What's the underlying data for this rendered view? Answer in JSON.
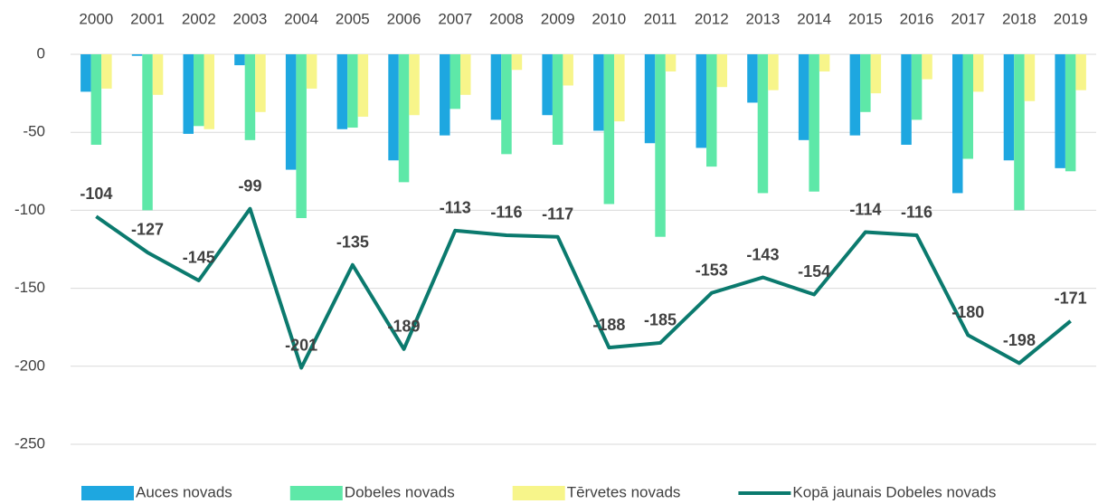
{
  "chart_data": {
    "type": "bar",
    "categories": [
      "2000",
      "2001",
      "2002",
      "2003",
      "2004",
      "2005",
      "2006",
      "2007",
      "2008",
      "2009",
      "2010",
      "2011",
      "2012",
      "2013",
      "2014",
      "2015",
      "2016",
      "2017",
      "2018",
      "2019"
    ],
    "series": [
      {
        "name": "Auces novads",
        "color": "#1ea7e0",
        "type": "bar",
        "values": [
          -24,
          -1,
          -51,
          -7,
          -74,
          -48,
          -68,
          -52,
          -42,
          -39,
          -49,
          -57,
          -60,
          -31,
          -55,
          -52,
          -58,
          -89,
          -68,
          -73
        ]
      },
      {
        "name": "Dobeles novads",
        "color": "#5ee8a8",
        "type": "bar",
        "values": [
          -58,
          -100,
          -46,
          -55,
          -105,
          -47,
          -82,
          -35,
          -64,
          -58,
          -96,
          -117,
          -72,
          -89,
          -88,
          -37,
          -42,
          -67,
          -100,
          -75
        ]
      },
      {
        "name": "Tērvetes novads",
        "color": "#f7f58a",
        "type": "bar",
        "values": [
          -22,
          -26,
          -48,
          -37,
          -22,
          -40,
          -39,
          -26,
          -10,
          -20,
          -43,
          -11,
          -21,
          -23,
          -11,
          -25,
          -16,
          -24,
          -30,
          -23
        ]
      },
      {
        "name": "Kopā jaunais Dobeles novads",
        "color": "#0b7a6e",
        "type": "line",
        "values": [
          -104,
          -127,
          -145,
          -99,
          -201,
          -135,
          -189,
          -113,
          -116,
          -117,
          -188,
          -185,
          -153,
          -143,
          -154,
          -114,
          -116,
          -180,
          -198,
          -171
        ]
      }
    ],
    "ylim": [
      -250,
      0
    ],
    "yticks": [
      0,
      -50,
      -100,
      -150,
      -200,
      -250
    ],
    "grid": true,
    "legend": "bottom"
  }
}
